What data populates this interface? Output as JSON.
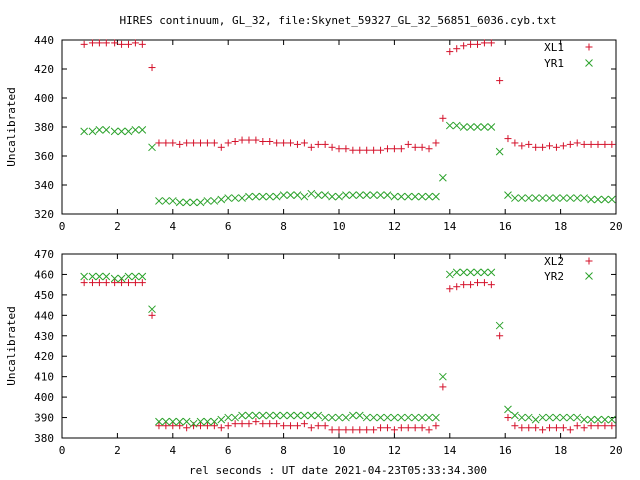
{
  "title": "HIRES continuum, GL_32, file:Skynet_59327_GL_32_56851_6036.cyb.txt",
  "xlabel": "rel seconds : UT date 2021-04-23T05:33:34.300",
  "colors": {
    "plus": "#d4112a",
    "cross": "#2aa12a",
    "axis": "#000000"
  },
  "chart_data": [
    {
      "type": "scatter",
      "title": "HIRES continuum, GL_32, file:Skynet_59327_GL_32_56851_6036.cyb.txt",
      "ylabel": "Uncalibrated",
      "xlim": [
        0,
        20
      ],
      "ylim": [
        320,
        440
      ],
      "x_ticks": [
        0,
        2,
        4,
        6,
        8,
        10,
        12,
        14,
        16,
        18,
        20
      ],
      "y_ticks": [
        320,
        340,
        360,
        380,
        400,
        420,
        440
      ],
      "legend_position": "top-right",
      "grid": false,
      "series": [
        {
          "name": "XL1",
          "marker": "plus",
          "color": "#d4112a",
          "x": [
            0.8,
            1.1,
            1.35,
            1.6,
            1.9,
            2.15,
            2.4,
            2.65,
            2.9,
            3.25,
            3.5,
            3.75,
            4.0,
            4.25,
            4.5,
            4.75,
            5.0,
            5.25,
            5.5,
            5.75,
            6.0,
            6.25,
            6.5,
            6.75,
            7.0,
            7.25,
            7.5,
            7.75,
            8.0,
            8.25,
            8.5,
            8.75,
            9.0,
            9.25,
            9.5,
            9.75,
            10.0,
            10.25,
            10.5,
            10.75,
            11.0,
            11.25,
            11.5,
            11.75,
            12.0,
            12.25,
            12.5,
            12.75,
            13.0,
            13.25,
            13.5,
            13.75,
            14.0,
            14.25,
            14.5,
            14.75,
            15.0,
            15.25,
            15.5,
            15.8,
            16.1,
            16.35,
            16.6,
            16.85,
            17.1,
            17.35,
            17.6,
            17.85,
            18.1,
            18.35,
            18.6,
            18.85,
            19.1,
            19.35,
            19.6,
            19.85
          ],
          "y": [
            437,
            438,
            438,
            438,
            438,
            437,
            437,
            438,
            437,
            421,
            369,
            369,
            369,
            368,
            369,
            369,
            369,
            369,
            369,
            366,
            369,
            370,
            371,
            371,
            371,
            370,
            370,
            369,
            369,
            369,
            368,
            369,
            366,
            368,
            368,
            366,
            365,
            365,
            364,
            364,
            364,
            364,
            364,
            365,
            365,
            365,
            368,
            366,
            366,
            365,
            369,
            386,
            432,
            434,
            436,
            437,
            437,
            438,
            438,
            412,
            372,
            369,
            367,
            368,
            366,
            366,
            367,
            366,
            367,
            368,
            369,
            368,
            368,
            368,
            368,
            368
          ],
          "values": [
            437,
            438,
            438,
            438,
            438,
            437,
            437,
            438,
            437,
            421,
            369,
            369,
            369,
            368,
            369,
            369,
            369,
            369,
            369,
            366,
            369,
            370,
            371,
            371,
            371,
            370,
            370,
            369,
            369,
            369,
            368,
            369,
            366,
            368,
            368,
            366,
            365,
            365,
            364,
            364,
            364,
            364,
            364,
            365,
            365,
            365,
            368,
            366,
            366,
            365,
            369,
            386,
            432,
            434,
            436,
            437,
            437,
            438,
            438,
            412,
            372,
            369,
            367,
            368,
            366,
            366,
            367,
            366,
            367,
            368,
            369,
            368,
            368,
            368,
            368,
            368
          ]
        },
        {
          "name": "YR1",
          "marker": "cross",
          "color": "#2aa12a",
          "x": [
            0.8,
            1.1,
            1.35,
            1.6,
            1.9,
            2.15,
            2.4,
            2.65,
            2.9,
            3.25,
            3.5,
            3.75,
            4.0,
            4.25,
            4.5,
            4.75,
            5.0,
            5.25,
            5.5,
            5.75,
            6.0,
            6.25,
            6.5,
            6.75,
            7.0,
            7.25,
            7.5,
            7.75,
            8.0,
            8.25,
            8.5,
            8.75,
            9.0,
            9.25,
            9.5,
            9.75,
            10.0,
            10.25,
            10.5,
            10.75,
            11.0,
            11.25,
            11.5,
            11.75,
            12.0,
            12.25,
            12.5,
            12.75,
            13.0,
            13.25,
            13.5,
            13.75,
            14.0,
            14.25,
            14.5,
            14.75,
            15.0,
            15.25,
            15.5,
            15.8,
            16.1,
            16.35,
            16.6,
            16.85,
            17.1,
            17.35,
            17.6,
            17.85,
            18.1,
            18.35,
            18.6,
            18.85,
            19.1,
            19.35,
            19.6,
            19.85
          ],
          "y": [
            377,
            377,
            378,
            378,
            377,
            377,
            377,
            378,
            378,
            366,
            329,
            329,
            329,
            328,
            328,
            328,
            328,
            329,
            329,
            330,
            331,
            331,
            331,
            332,
            332,
            332,
            332,
            332,
            333,
            333,
            333,
            332,
            334,
            333,
            333,
            332,
            332,
            333,
            333,
            333,
            333,
            333,
            333,
            333,
            332,
            332,
            332,
            332,
            332,
            332,
            332,
            345,
            381,
            381,
            380,
            380,
            380,
            380,
            380,
            363,
            333,
            331,
            331,
            331,
            331,
            331,
            331,
            331,
            331,
            331,
            331,
            331,
            330,
            330,
            330,
            330
          ],
          "values": [
            377,
            377,
            378,
            378,
            377,
            377,
            377,
            378,
            378,
            366,
            329,
            329,
            329,
            328,
            328,
            328,
            328,
            329,
            329,
            330,
            331,
            331,
            331,
            332,
            332,
            332,
            332,
            332,
            333,
            333,
            333,
            332,
            334,
            333,
            333,
            332,
            332,
            333,
            333,
            333,
            333,
            333,
            333,
            333,
            332,
            332,
            332,
            332,
            332,
            332,
            332,
            345,
            381,
            381,
            380,
            380,
            380,
            380,
            380,
            363,
            333,
            331,
            331,
            331,
            331,
            331,
            331,
            331,
            331,
            331,
            331,
            331,
            330,
            330,
            330,
            330
          ]
        }
      ]
    },
    {
      "type": "scatter",
      "xlabel": "rel seconds : UT date 2021-04-23T05:33:34.300",
      "ylabel": "Uncalibrated",
      "xlim": [
        0,
        20
      ],
      "ylim": [
        380,
        470
      ],
      "x_ticks": [
        0,
        2,
        4,
        6,
        8,
        10,
        12,
        14,
        16,
        18,
        20
      ],
      "y_ticks": [
        380,
        390,
        400,
        410,
        420,
        430,
        440,
        450,
        460,
        470
      ],
      "legend_position": "top-right",
      "grid": false,
      "series": [
        {
          "name": "XL2",
          "marker": "plus",
          "color": "#d4112a",
          "x": [
            0.8,
            1.1,
            1.35,
            1.6,
            1.9,
            2.15,
            2.4,
            2.65,
            2.9,
            3.25,
            3.5,
            3.75,
            4.0,
            4.25,
            4.5,
            4.75,
            5.0,
            5.25,
            5.5,
            5.75,
            6.0,
            6.25,
            6.5,
            6.75,
            7.0,
            7.25,
            7.5,
            7.75,
            8.0,
            8.25,
            8.5,
            8.75,
            9.0,
            9.25,
            9.5,
            9.75,
            10.0,
            10.25,
            10.5,
            10.75,
            11.0,
            11.25,
            11.5,
            11.75,
            12.0,
            12.25,
            12.5,
            12.75,
            13.0,
            13.25,
            13.5,
            13.75,
            14.0,
            14.25,
            14.5,
            14.75,
            15.0,
            15.25,
            15.5,
            15.8,
            16.1,
            16.35,
            16.6,
            16.85,
            17.1,
            17.35,
            17.6,
            17.85,
            18.1,
            18.35,
            18.6,
            18.85,
            19.1,
            19.35,
            19.6,
            19.85
          ],
          "y": [
            456,
            456,
            456,
            456,
            456,
            456,
            456,
            456,
            456,
            440,
            386,
            386,
            386,
            386,
            385,
            386,
            386,
            386,
            386,
            385,
            386,
            387,
            387,
            387,
            388,
            387,
            387,
            387,
            386,
            386,
            386,
            387,
            385,
            386,
            386,
            384,
            384,
            384,
            384,
            384,
            384,
            384,
            385,
            385,
            384,
            385,
            385,
            385,
            385,
            384,
            386,
            405,
            453,
            454,
            455,
            455,
            456,
            456,
            455,
            430,
            390,
            386,
            385,
            385,
            385,
            384,
            385,
            385,
            385,
            384,
            386,
            385,
            386,
            386,
            386,
            386
          ],
          "values": [
            456,
            456,
            456,
            456,
            456,
            456,
            456,
            456,
            456,
            440,
            386,
            386,
            386,
            386,
            385,
            386,
            386,
            386,
            386,
            385,
            386,
            387,
            387,
            387,
            388,
            387,
            387,
            387,
            386,
            386,
            386,
            387,
            385,
            386,
            386,
            384,
            384,
            384,
            384,
            384,
            384,
            384,
            385,
            385,
            384,
            385,
            385,
            385,
            385,
            384,
            386,
            405,
            453,
            454,
            455,
            455,
            456,
            456,
            455,
            430,
            390,
            386,
            385,
            385,
            385,
            384,
            385,
            385,
            385,
            384,
            386,
            385,
            386,
            386,
            386,
            386
          ]
        },
        {
          "name": "YR2",
          "marker": "cross",
          "color": "#2aa12a",
          "x": [
            0.8,
            1.1,
            1.35,
            1.6,
            1.9,
            2.15,
            2.4,
            2.65,
            2.9,
            3.25,
            3.5,
            3.75,
            4.0,
            4.25,
            4.5,
            4.75,
            5.0,
            5.25,
            5.5,
            5.75,
            6.0,
            6.25,
            6.5,
            6.75,
            7.0,
            7.25,
            7.5,
            7.75,
            8.0,
            8.25,
            8.5,
            8.75,
            9.0,
            9.25,
            9.5,
            9.75,
            10.0,
            10.25,
            10.5,
            10.75,
            11.0,
            11.25,
            11.5,
            11.75,
            12.0,
            12.25,
            12.5,
            12.75,
            13.0,
            13.25,
            13.5,
            13.75,
            14.0,
            14.25,
            14.5,
            14.75,
            15.0,
            15.25,
            15.5,
            15.8,
            16.1,
            16.35,
            16.6,
            16.85,
            17.1,
            17.35,
            17.6,
            17.85,
            18.1,
            18.35,
            18.6,
            18.85,
            19.1,
            19.35,
            19.6,
            19.85
          ],
          "y": [
            459,
            459,
            459,
            459,
            458,
            458,
            459,
            459,
            459,
            443,
            388,
            388,
            388,
            388,
            388,
            387,
            388,
            388,
            388,
            389,
            390,
            390,
            391,
            391,
            391,
            391,
            391,
            391,
            391,
            391,
            391,
            391,
            391,
            391,
            390,
            390,
            390,
            390,
            391,
            391,
            390,
            390,
            390,
            390,
            390,
            390,
            390,
            390,
            390,
            390,
            390,
            410,
            460,
            461,
            461,
            461,
            461,
            461,
            461,
            435,
            394,
            391,
            390,
            390,
            389,
            390,
            390,
            390,
            390,
            390,
            390,
            389,
            389,
            389,
            389,
            389
          ],
          "values": [
            459,
            459,
            459,
            459,
            458,
            458,
            459,
            459,
            459,
            443,
            388,
            388,
            388,
            388,
            388,
            387,
            388,
            388,
            388,
            389,
            390,
            390,
            391,
            391,
            391,
            391,
            391,
            391,
            391,
            391,
            391,
            391,
            391,
            391,
            390,
            390,
            390,
            390,
            391,
            391,
            390,
            390,
            390,
            390,
            390,
            390,
            390,
            390,
            390,
            390,
            390,
            410,
            460,
            461,
            461,
            461,
            461,
            461,
            461,
            435,
            394,
            391,
            390,
            390,
            389,
            390,
            390,
            390,
            390,
            390,
            390,
            389,
            389,
            389,
            389,
            389
          ]
        }
      ]
    }
  ]
}
